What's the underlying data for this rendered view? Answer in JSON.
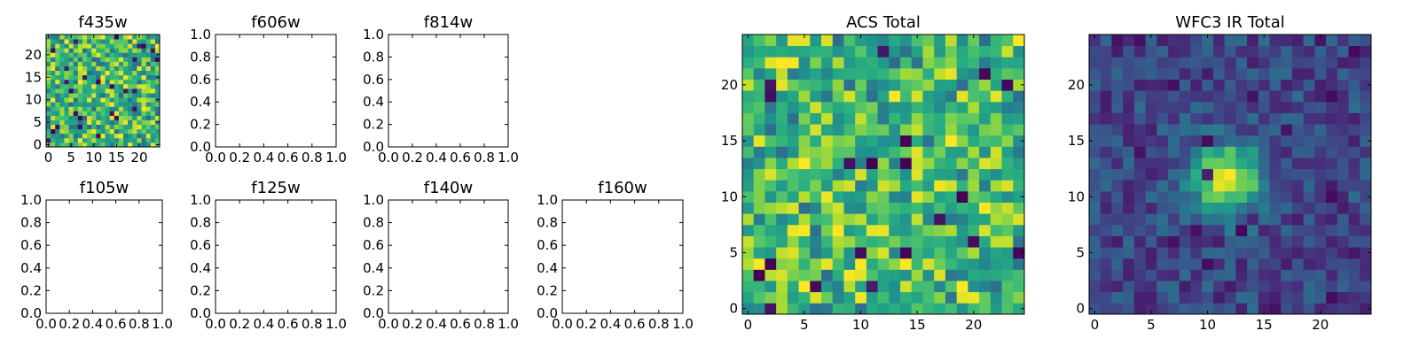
{
  "chart_data": [
    {
      "type": "heatmap",
      "title": "f435w",
      "xlim": [
        -0.5,
        24.5
      ],
      "ylim": [
        -0.5,
        24.5
      ],
      "xticks": [
        0,
        5,
        10,
        15,
        20
      ],
      "yticks": [
        0,
        5,
        10,
        15,
        20
      ],
      "grid_size": 25,
      "colormap": "viridis",
      "seed": 11,
      "profile": "noise_bright"
    },
    {
      "type": "empty",
      "title": "f606w",
      "xlim": [
        0,
        1
      ],
      "ylim": [
        0,
        1
      ],
      "xticks": [
        "0.0",
        "0.2",
        "0.4",
        "0.6",
        "0.8",
        "1.0"
      ],
      "yticks": [
        "0.0",
        "0.2",
        "0.4",
        "0.6",
        "0.8",
        "1.0"
      ]
    },
    {
      "type": "empty",
      "title": "f814w",
      "xlim": [
        0,
        1
      ],
      "ylim": [
        0,
        1
      ],
      "xticks": [
        "0.0",
        "0.2",
        "0.4",
        "0.6",
        "0.8",
        "1.0"
      ],
      "yticks": [
        "0.0",
        "0.2",
        "0.4",
        "0.6",
        "0.8",
        "1.0"
      ]
    },
    {
      "type": "empty",
      "title": "f105w",
      "xlim": [
        0,
        1
      ],
      "ylim": [
        0,
        1
      ],
      "xticks": [
        "0.0",
        "0.2",
        "0.4",
        "0.6",
        "0.8",
        "1.0"
      ],
      "yticks": [
        "0.0",
        "0.2",
        "0.4",
        "0.6",
        "0.8",
        "1.0"
      ]
    },
    {
      "type": "empty",
      "title": "f125w",
      "xlim": [
        0,
        1
      ],
      "ylim": [
        0,
        1
      ],
      "xticks": [
        "0.0",
        "0.2",
        "0.4",
        "0.6",
        "0.8",
        "1.0"
      ],
      "yticks": [
        "0.0",
        "0.2",
        "0.4",
        "0.6",
        "0.8",
        "1.0"
      ]
    },
    {
      "type": "empty",
      "title": "f140w",
      "xlim": [
        0,
        1
      ],
      "ylim": [
        0,
        1
      ],
      "xticks": [
        "0.0",
        "0.2",
        "0.4",
        "0.6",
        "0.8",
        "1.0"
      ],
      "yticks": [
        "0.0",
        "0.2",
        "0.4",
        "0.6",
        "0.8",
        "1.0"
      ]
    },
    {
      "type": "empty",
      "title": "f160w",
      "xlim": [
        0,
        1
      ],
      "ylim": [
        0,
        1
      ],
      "xticks": [
        "0.0",
        "0.2",
        "0.4",
        "0.6",
        "0.8",
        "1.0"
      ],
      "yticks": [
        "0.0",
        "0.2",
        "0.4",
        "0.6",
        "0.8",
        "1.0"
      ]
    },
    {
      "type": "heatmap",
      "title": "ACS Total",
      "xlim": [
        -0.5,
        24.5
      ],
      "ylim": [
        -0.5,
        24.5
      ],
      "xticks": [
        0,
        5,
        10,
        15,
        20
      ],
      "yticks": [
        0,
        5,
        10,
        15,
        20
      ],
      "grid_size": 25,
      "colormap": "viridis",
      "seed": 29,
      "profile": "noise_bright"
    },
    {
      "type": "heatmap",
      "title": "WFC3 IR Total",
      "xlim": [
        -0.5,
        24.5
      ],
      "ylim": [
        -0.5,
        24.5
      ],
      "xticks": [
        0,
        5,
        10,
        15,
        20
      ],
      "yticks": [
        0,
        5,
        10,
        15,
        20
      ],
      "grid_size": 25,
      "colormap": "viridis",
      "seed": 47,
      "profile": "central_source",
      "source_center": [
        11.7,
        11.5
      ]
    }
  ]
}
